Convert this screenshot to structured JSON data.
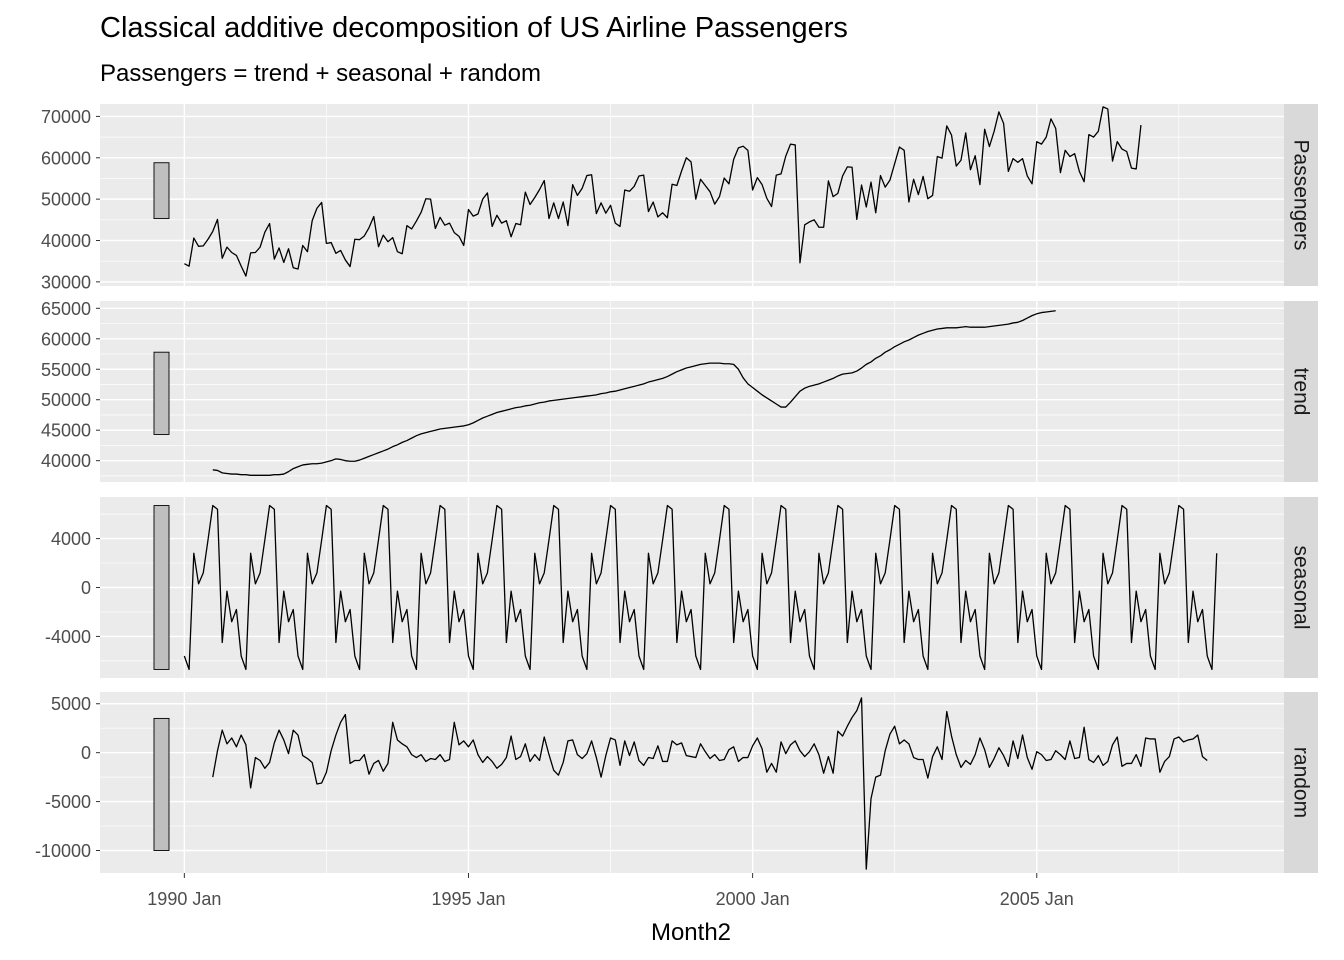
{
  "title": "Classical additive decomposition of US Airline Passengers",
  "subtitle": "Passengers = trend + seasonal + random",
  "chart_data": {
    "type": "line",
    "xlabel": "Month2",
    "x_start": "1990 Jan",
    "x_end": "2008 Mar",
    "x_ticks": [
      "1990 Jan",
      "1995 Jan",
      "2000 Jan",
      "2005 Jan"
    ],
    "grid": true,
    "line_color": "#000000",
    "panel_background": "#ebebeb",
    "strip_background": "#d9d9d9",
    "scale_bar_color": "#bfbfbf",
    "panels": [
      {
        "name": "Passengers",
        "ylim": [
          29000,
          73000
        ],
        "yticks": [
          30000,
          40000,
          50000,
          60000,
          70000
        ],
        "ytick_labels": [
          "30000",
          "40000",
          "50000",
          "60000",
          "70000"
        ],
        "scale_bar": [
          45300,
          58800
        ],
        "values": [
          34400,
          33800,
          40600,
          38600,
          38700,
          40300,
          42200,
          45100,
          35700,
          38400,
          37100,
          36400,
          33800,
          31400,
          37000,
          37100,
          38400,
          42000,
          44100,
          35500,
          38200,
          34700,
          38000,
          33400,
          33100,
          38800,
          37300,
          44800,
          47800,
          49200,
          39300,
          39500,
          36900,
          37600,
          35300,
          33700,
          40300,
          40200,
          41100,
          43100,
          45800,
          38500,
          41300,
          39700,
          40700,
          37300,
          36800,
          43600,
          42800,
          44700,
          46800,
          50100,
          50000,
          42900,
          45600,
          43700,
          44200,
          41900,
          41000,
          38800,
          47500,
          45900,
          46400,
          50000,
          51500,
          43400,
          46100,
          44200,
          44800,
          40900,
          44100,
          43800,
          51700,
          48700,
          50400,
          52300,
          54500,
          45300,
          49100,
          45300,
          49300,
          43600,
          53500,
          50900,
          52600,
          55700,
          55900,
          46500,
          49100,
          46600,
          48500,
          44200,
          43400,
          52200,
          51900,
          53100,
          55600,
          55800,
          47000,
          49300,
          45700,
          46700,
          45500,
          53600,
          53300,
          56800,
          60000,
          59000,
          50000,
          54800,
          53300,
          51800,
          48800,
          50600,
          55100,
          53700,
          59600,
          62400,
          62800,
          61800,
          52200,
          55200,
          53500,
          50200,
          48200,
          55800,
          56100,
          60400,
          63300,
          63100,
          34600,
          43800,
          44500,
          45000,
          43200,
          43200,
          54400,
          50600,
          51400,
          55600,
          57800,
          57700,
          45100,
          53400,
          48100,
          54100,
          46700,
          55700,
          52900,
          54600,
          58600,
          62600,
          61800,
          49300,
          54800,
          51100,
          55500,
          50100,
          50900,
          60300,
          59900,
          67700,
          65500,
          58000,
          59400,
          66000,
          57100,
          60500,
          53500,
          66900,
          62700,
          66400,
          71100,
          68300,
          56700,
          59800,
          58900,
          59800,
          55600,
          53700,
          63900,
          63300,
          65000,
          69400,
          67100,
          56400,
          61800,
          60300,
          61000,
          56700,
          54200,
          65600,
          65000,
          66400,
          72300,
          71800,
          59200,
          63900,
          62100,
          61500,
          57500,
          57300,
          67900
        ]
      },
      {
        "name": "trend",
        "ylim": [
          36500,
          66200
        ],
        "yticks": [
          40000,
          45000,
          50000,
          55000,
          60000,
          65000
        ],
        "ytick_labels": [
          "40000",
          "45000",
          "50000",
          "55000",
          "60000",
          "65000"
        ],
        "scale_bar": [
          44300,
          57800
        ],
        "values": [
          38500,
          38400,
          38000,
          37900,
          37800,
          37800,
          37700,
          37700,
          37600,
          37600,
          37600,
          37600,
          37600,
          37700,
          37700,
          37800,
          38200,
          38700,
          39000,
          39300,
          39400,
          39500,
          39500,
          39600,
          39800,
          40000,
          40300,
          40200,
          40000,
          39900,
          39900,
          40100,
          40400,
          40700,
          41000,
          41300,
          41600,
          41900,
          42300,
          42600,
          43000,
          43300,
          43700,
          44100,
          44400,
          44600,
          44800,
          45000,
          45200,
          45300,
          45400,
          45500,
          45600,
          45700,
          45900,
          46200,
          46600,
          47000,
          47300,
          47600,
          47900,
          48100,
          48300,
          48500,
          48700,
          48800,
          49000,
          49100,
          49300,
          49500,
          49600,
          49800,
          49900,
          50000,
          50100,
          50200,
          50300,
          50400,
          50500,
          50600,
          50700,
          50800,
          51000,
          51100,
          51300,
          51400,
          51600,
          51800,
          52000,
          52200,
          52400,
          52600,
          52900,
          53100,
          53300,
          53500,
          53800,
          54200,
          54600,
          54900,
          55200,
          55400,
          55600,
          55800,
          55900,
          56000,
          56000,
          56000,
          55900,
          55900,
          55800,
          55000,
          53600,
          52600,
          52000,
          51400,
          50800,
          50300,
          49800,
          49300,
          48800,
          48800,
          49600,
          50500,
          51400,
          51900,
          52200,
          52400,
          52600,
          52900,
          53200,
          53500,
          53900,
          54200,
          54300,
          54400,
          54700,
          55200,
          55800,
          56200,
          56800,
          57200,
          57800,
          58200,
          58700,
          59100,
          59500,
          59800,
          60200,
          60600,
          60900,
          61200,
          61400,
          61600,
          61700,
          61800,
          61800,
          61800,
          61900,
          62000,
          61900,
          61900,
          61900,
          61900,
          62000,
          62100,
          62200,
          62300,
          62400,
          62600,
          62700,
          63000,
          63400,
          63800,
          64100,
          64300,
          64400,
          64500,
          64600
        ]
      },
      {
        "name": "seasonal",
        "ylim": [
          -7400,
          7400
        ],
        "yticks": [
          -4000,
          0,
          4000
        ],
        "ytick_labels": [
          "-4000",
          "0",
          "4000"
        ],
        "scale_bar": [
          -6700,
          6700
        ],
        "pattern_start": "1990 Jan",
        "values": [
          -5600,
          -6700,
          2800,
          300,
          1200,
          3900,
          6700,
          6400,
          -4500,
          -300,
          -2800,
          -1800
        ]
      },
      {
        "name": "random",
        "ylim": [
          -12300,
          6200
        ],
        "yticks": [
          -10000,
          -5000,
          0,
          5000
        ],
        "ytick_labels": [
          "-10000",
          "-5000",
          "0",
          "5000"
        ],
        "scale_bar": [
          -10000,
          3500
        ],
        "values": [
          -2500,
          200,
          2300,
          900,
          1500,
          600,
          1800,
          800,
          -3600,
          -500,
          -800,
          -1600,
          -1000,
          1000,
          2300,
          1300,
          -100,
          2300,
          1800,
          -300,
          -600,
          -1000,
          -3200,
          -3100,
          -2000,
          200,
          1800,
          3100,
          3900,
          -1100,
          -800,
          -800,
          -200,
          -2200,
          -1100,
          -800,
          -1900,
          -1100,
          3100,
          1300,
          900,
          600,
          -200,
          -500,
          -200,
          -900,
          -600,
          -700,
          -200,
          -900,
          -700,
          3100,
          800,
          1200,
          600,
          1300,
          -200,
          -1000,
          -400,
          -900,
          -1600,
          -1200,
          -500,
          1700,
          -700,
          -400,
          900,
          -900,
          -200,
          -800,
          1600,
          -200,
          -1800,
          -2300,
          -1000,
          1200,
          1300,
          -200,
          -600,
          -100,
          1200,
          -500,
          -2500,
          -300,
          1500,
          1300,
          -1300,
          1200,
          -300,
          1100,
          -800,
          -1300,
          -500,
          -600,
          700,
          -900,
          -900,
          1200,
          800,
          1000,
          -300,
          -400,
          -500,
          900,
          100,
          -600,
          -200,
          -800,
          -700,
          300,
          600,
          -900,
          -500,
          -500,
          700,
          1500,
          400,
          -2000,
          -1100,
          -2000,
          1100,
          -100,
          800,
          1200,
          200,
          -400,
          100,
          900,
          -200,
          -2100,
          -400,
          -2100,
          2200,
          1700,
          2700,
          3600,
          4300,
          5600,
          -11900,
          -4700,
          -2500,
          -2300,
          200,
          1900,
          2700,
          900,
          1300,
          900,
          -500,
          -700,
          -700,
          -2600,
          -400,
          600,
          -700,
          4200,
          1700,
          -200,
          -1500,
          -800,
          -1200,
          -200,
          1500,
          300,
          -1500,
          -600,
          500,
          -300,
          -1400,
          1200,
          -600,
          1800,
          -500,
          -1700,
          100,
          -200,
          -800,
          -700,
          200,
          -200,
          -700,
          1200,
          -600,
          -500,
          2600,
          -700,
          -1000,
          -300,
          -1300,
          -900,
          800,
          1600,
          -1400,
          -1100,
          -1100,
          -200,
          -1400,
          1500,
          1400,
          1400,
          -2000,
          -900,
          -400,
          1400,
          1600,
          1100,
          1300,
          1400,
          1800,
          -400,
          -800
        ]
      }
    ]
  }
}
